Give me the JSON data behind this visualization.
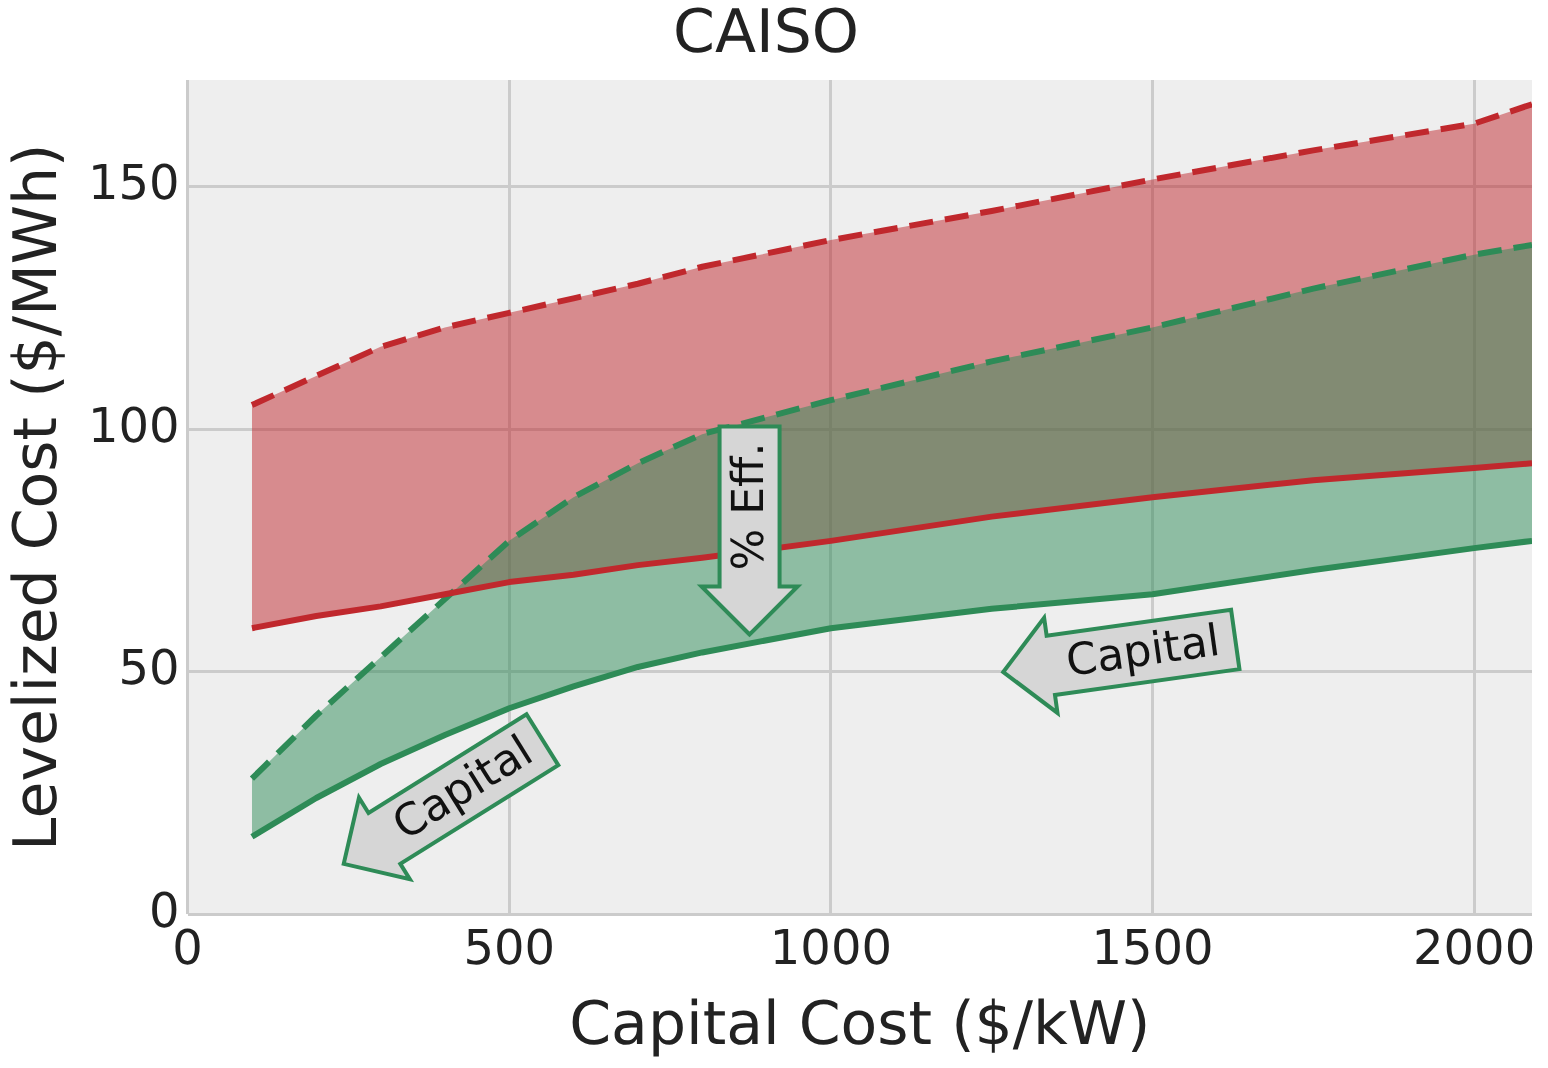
{
  "chart_data": {
    "type": "line",
    "title": "CAISO",
    "xlabel": "Capital Cost ($/kW)",
    "ylabel": "Levelized Cost ($/MWh)",
    "x": [
      100,
      200,
      300,
      400,
      500,
      600,
      700,
      800,
      1000,
      1250,
      1500,
      1750,
      2000,
      2090
    ],
    "series": [
      {
        "color": "#c0282d",
        "line_style": "solid",
        "values": [
          59,
          61.5,
          63.5,
          66,
          68.5,
          70,
          72,
          73.5,
          77,
          82,
          86,
          89.5,
          92,
          93
        ]
      },
      {
        "color": "#c0282d",
        "line_style": "dashed",
        "values": [
          105,
          111,
          117,
          121,
          124,
          127,
          130,
          133.5,
          139,
          145,
          151.5,
          157.5,
          163,
          167
        ],
        "lower": [
          59,
          61.5,
          63.5,
          66,
          68.5,
          70,
          72,
          73.5,
          77,
          82,
          86,
          89.5,
          92,
          93
        ],
        "upper": [
          105,
          111,
          117,
          121,
          124,
          127,
          130,
          133.5,
          139,
          145,
          151.5,
          157.5,
          163,
          167
        ]
      },
      {
        "color": "#2e8b57",
        "line_style": "solid",
        "values": [
          16,
          24,
          31,
          37,
          42.5,
          47,
          51,
          54,
          59,
          63,
          66,
          71,
          75.5,
          77
        ]
      },
      {
        "color": "#2e8b57",
        "line_style": "dashed",
        "values": [
          28,
          41,
          53,
          65,
          77,
          86,
          93,
          99,
          106,
          114,
          121,
          129,
          136,
          138
        ],
        "lower": [
          16,
          24,
          31,
          37,
          42.5,
          47,
          51,
          54,
          59,
          63,
          66,
          71,
          75.5,
          77
        ],
        "upper": [
          28,
          41,
          53,
          65,
          77,
          86,
          93,
          99,
          106,
          114,
          121,
          129,
          136,
          138
        ]
      }
    ],
    "xlim": [
      0,
      2090
    ],
    "xticks": [
      0,
      500,
      1000,
      1500,
      2000
    ],
    "ylim": [
      0,
      172
    ],
    "yticks": [
      0,
      50,
      100,
      150
    ],
    "grid": true,
    "legend": false,
    "marker": "none",
    "annotations": [
      "Capital",
      "Capital",
      "% Eff."
    ]
  }
}
